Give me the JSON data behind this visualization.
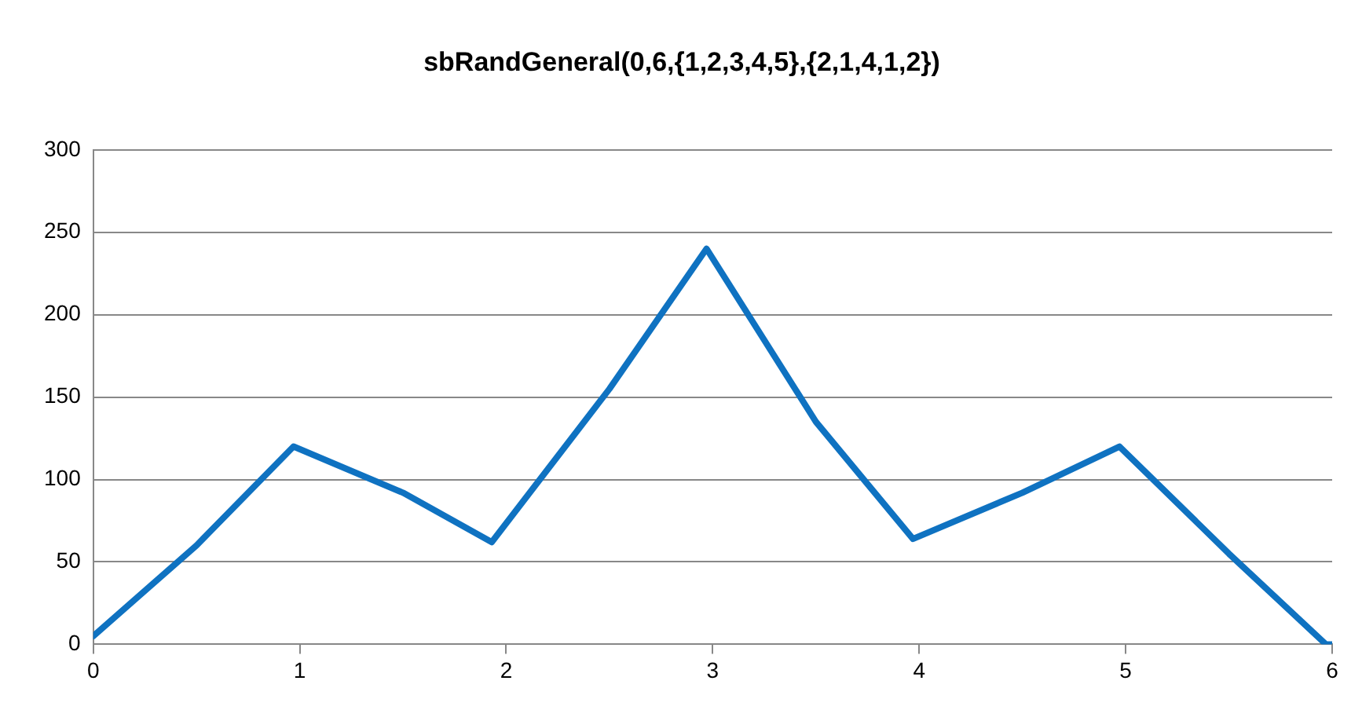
{
  "chart_data": {
    "type": "line",
    "title": "sbRandGeneral(0,6,{1,2,3,4,5},{2,1,4,1,2})",
    "x": [
      0,
      0.5,
      0.97,
      1.5,
      1.93,
      2.5,
      2.97,
      3.5,
      3.97,
      4.5,
      4.97,
      5.5,
      5.97,
      6
    ],
    "series": [
      {
        "color": "#0f72c1",
        "values": [
          5,
          60,
          120,
          92,
          62,
          155,
          240,
          135,
          64,
          92,
          120,
          55,
          0,
          0
        ]
      }
    ],
    "xlim": [
      0,
      6
    ],
    "xticks": [
      0,
      1,
      2,
      3,
      4,
      5,
      6
    ],
    "ylim": [
      0,
      300
    ],
    "yticks": [
      0,
      50,
      100,
      150,
      200,
      250,
      300
    ],
    "grid": "y",
    "legend": false,
    "marker": "none",
    "line_style": "solid"
  }
}
